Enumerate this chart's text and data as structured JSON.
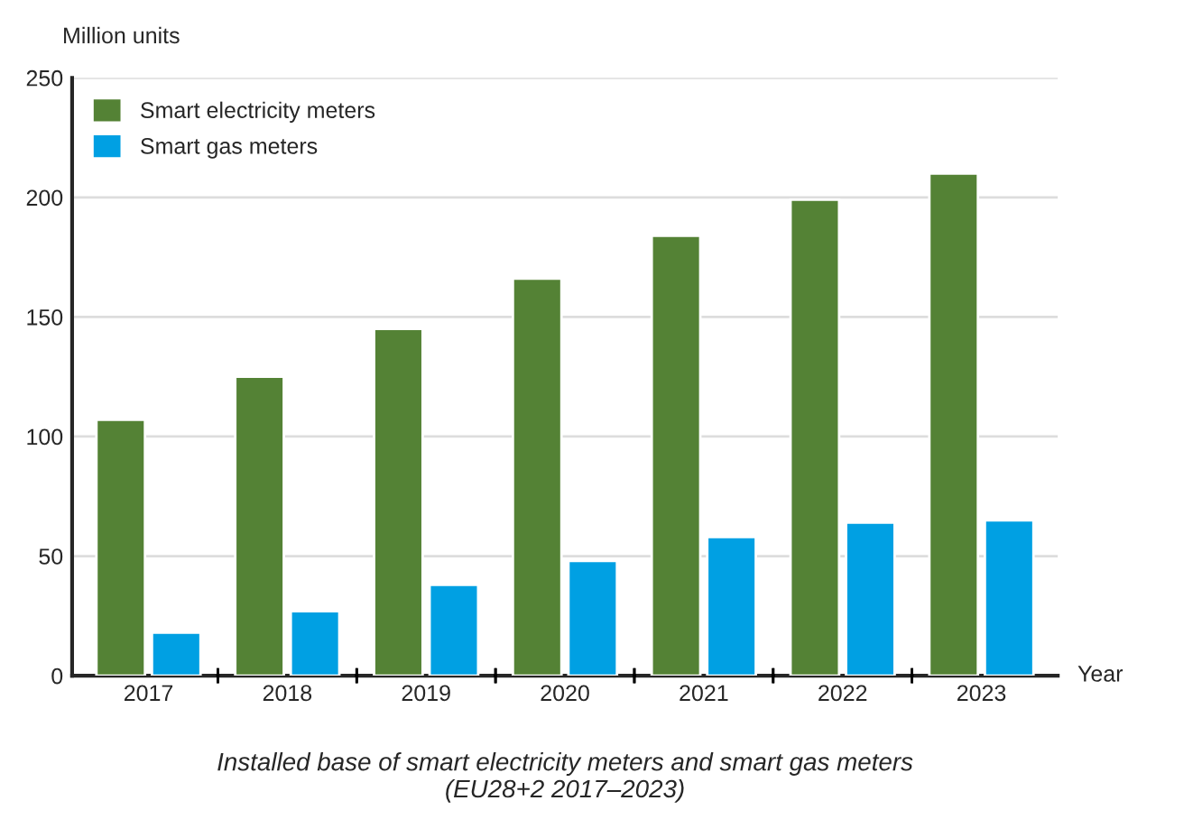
{
  "chart_data": {
    "type": "bar",
    "title": "Installed base of smart electricity meters and smart gas meters\n(EU28+2 2017–2023)",
    "ylabel": "Million units",
    "xlabel": "Year",
    "categories": [
      "2017",
      "2018",
      "2019",
      "2020",
      "2021",
      "2022",
      "2023"
    ],
    "series": [
      {
        "name": "Smart electricity meters",
        "color": "#548235",
        "values": [
          107,
          125,
          145,
          166,
          184,
          199,
          210
        ]
      },
      {
        "name": "Smart gas meters",
        "color": "#00a0e3",
        "values": [
          18,
          27,
          38,
          48,
          58,
          64,
          65
        ]
      }
    ],
    "ylim": [
      0,
      250
    ],
    "yticks": [
      0,
      50,
      100,
      150,
      200,
      250
    ],
    "grid": "y",
    "legend": "top left"
  }
}
